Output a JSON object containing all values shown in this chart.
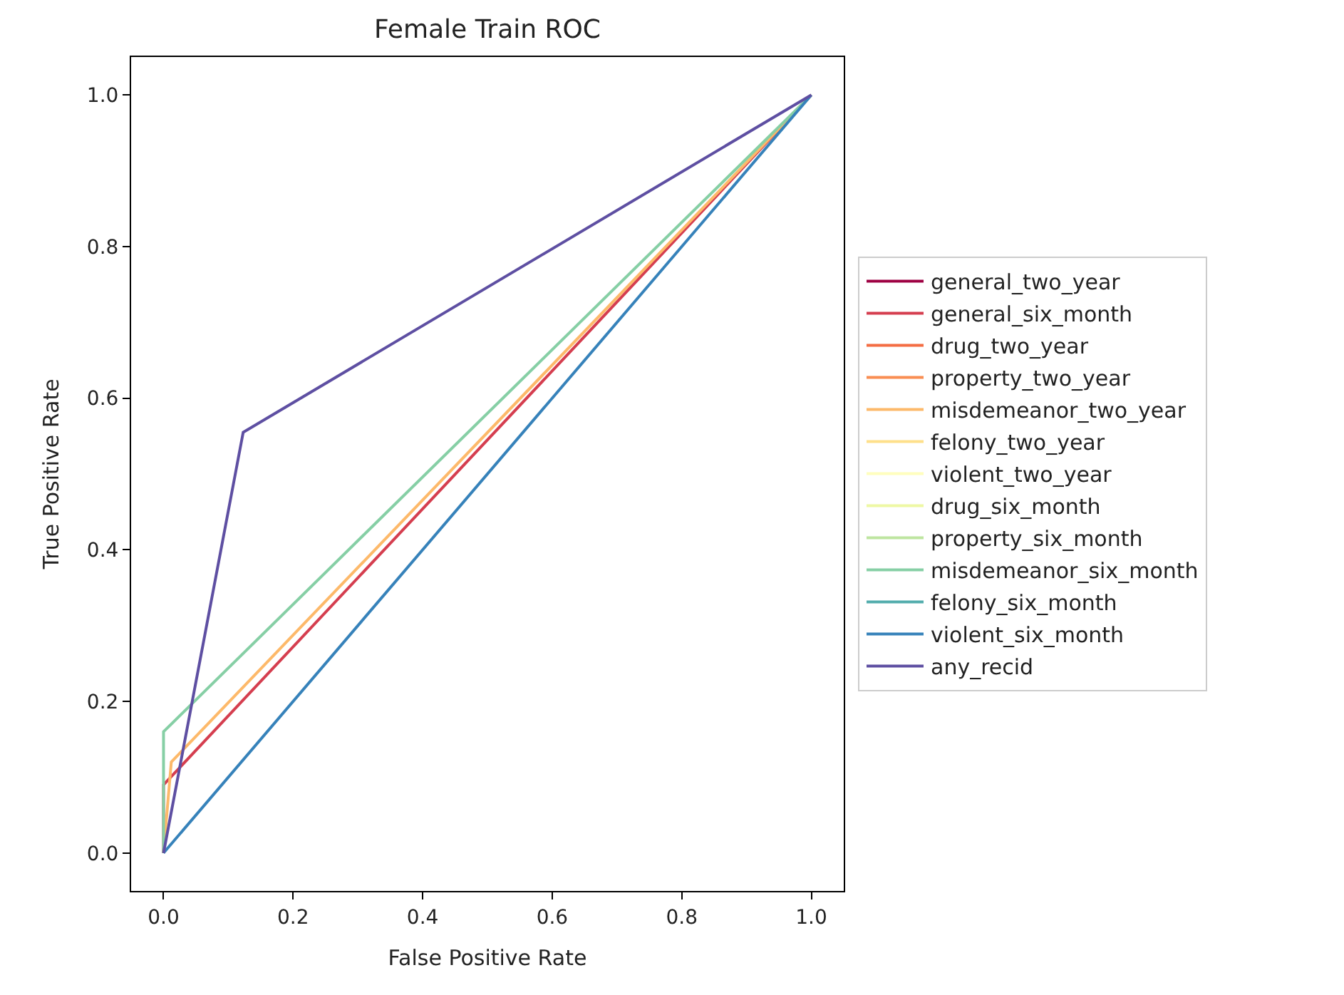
{
  "chart_data": {
    "type": "line",
    "title": "Female Train ROC",
    "xlabel": "False Positive Rate",
    "ylabel": "True Positive Rate",
    "xlim": [
      -0.05,
      1.05
    ],
    "ylim": [
      -0.05,
      1.05
    ],
    "xticks": [
      {
        "value": 0,
        "label": "0.0"
      },
      {
        "value": 0.2,
        "label": "0.2"
      },
      {
        "value": 0.4,
        "label": "0.4"
      },
      {
        "value": 0.6,
        "label": "0.6"
      },
      {
        "value": 0.8,
        "label": "0.8"
      },
      {
        "value": 1,
        "label": "1.0"
      }
    ],
    "yticks": [
      {
        "value": 0,
        "label": "0.0"
      },
      {
        "value": 0.2,
        "label": "0.2"
      },
      {
        "value": 0.4,
        "label": "0.4"
      },
      {
        "value": 0.6,
        "label": "0.6"
      },
      {
        "value": 0.8,
        "label": "0.8"
      },
      {
        "value": 1,
        "label": "1.0"
      }
    ],
    "legend": "right",
    "marker": "none",
    "line_style": "solid",
    "series": [
      {
        "name": "general_two_year",
        "color": "#9e0142"
      },
      {
        "name": "general_six_month",
        "color": "#d53e4f",
        "x": [
          0,
          0,
          1
        ],
        "values": [
          0,
          0.09,
          1
        ]
      },
      {
        "name": "drug_two_year",
        "color": "#f46d43"
      },
      {
        "name": "property_two_year",
        "color": "#f98e52"
      },
      {
        "name": "misdemeanor_two_year",
        "color": "#fdb96a",
        "x": [
          0,
          0.012,
          1
        ],
        "values": [
          0,
          0.12,
          1
        ]
      },
      {
        "name": "felony_two_year",
        "color": "#fee08b"
      },
      {
        "name": "violent_two_year",
        "color": "#fffebe"
      },
      {
        "name": "drug_six_month",
        "color": "#eef8a4"
      },
      {
        "name": "property_six_month",
        "color": "#bee5a0"
      },
      {
        "name": "misdemeanor_six_month",
        "color": "#86cfa5",
        "x": [
          0,
          0,
          1
        ],
        "values": [
          0,
          0.16,
          1
        ]
      },
      {
        "name": "felony_six_month",
        "color": "#53adad"
      },
      {
        "name": "violent_six_month",
        "color": "#3682ba",
        "x": [
          0,
          1
        ],
        "values": [
          0,
          1
        ]
      },
      {
        "name": "any_recid",
        "color": "#5e4fa2",
        "x": [
          0,
          0.123,
          1
        ],
        "values": [
          0,
          0.555,
          1
        ]
      }
    ]
  }
}
